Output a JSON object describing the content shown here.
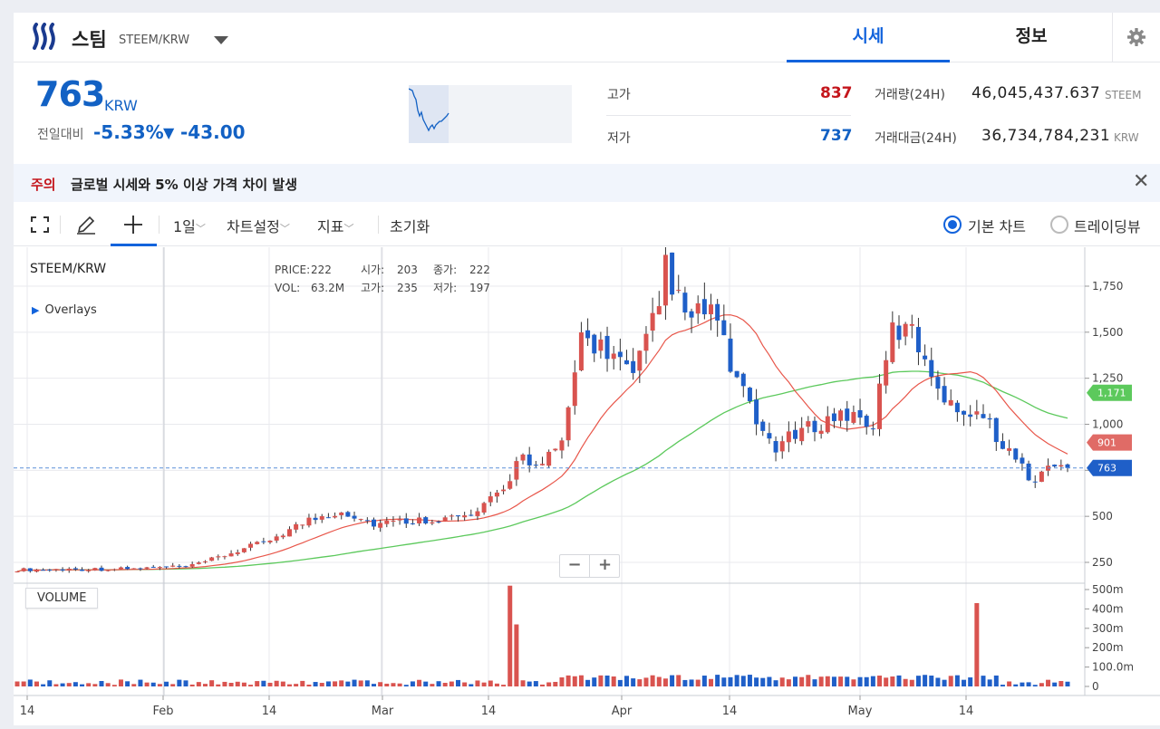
{
  "header": {
    "coin_name": "스팀",
    "pair": "STEEM/KRW",
    "tab_quote": "시세",
    "tab_info": "정보"
  },
  "summary": {
    "price": "763",
    "unit": "KRW",
    "change_label": "전일대비",
    "change_rate": "-5.33%",
    "change_arrow": "▼",
    "change_amount": "-43.00",
    "high_label": "고가",
    "high_value": "837",
    "low_label": "저가",
    "low_value": "737",
    "volume_label": "거래량(24H)",
    "volume_value": "46,045,437.637",
    "volume_unit": "STEEM",
    "amount_label": "거래대금(24H)",
    "amount_value": "36,734,784,231",
    "amount_unit": "KRW"
  },
  "notice": {
    "tag": "주의",
    "text": "글로벌 시세와 5% 이상 가격 차이 발생"
  },
  "toolbar": {
    "period": "1일",
    "chart_settings": "차트설정",
    "indicators": "지표",
    "reset": "초기화",
    "basic_chart": "기본 차트",
    "trading_view": "트레이딩뷰",
    "selected_view": "기본 차트"
  },
  "chart": {
    "title": "STEEM/KRW",
    "overlays": "Overlays",
    "info": {
      "price_label": "PRICE:",
      "price_value": "222",
      "vol_label": "VOL:",
      "vol_value": "63.2M",
      "open_label": "시가:",
      "open_value": "203",
      "high_label": "고가:",
      "high_value": "235",
      "close_label": "종가:",
      "close_value": "222",
      "low_label": "저가:",
      "low_value": "197"
    },
    "volume_label": "VOLUME",
    "zoom_out": "−",
    "zoom_in": "+"
  },
  "colors": {
    "up": "#d9534f",
    "down": "#1f5fc8",
    "ma_short": "#e8564a",
    "ma_long": "#5cc95c",
    "accent": "#1263dc"
  },
  "chart_data": {
    "type": "candlestick",
    "pair": "STEEM/KRW",
    "price_axis_ticks": [
      250,
      500,
      750,
      1000,
      1250,
      1500,
      1750
    ],
    "price_axis_tick_labels": [
      "250",
      "500",
      "750",
      "1,000",
      "1,250",
      "1,500",
      "1,750"
    ],
    "volume_axis_ticks": [
      "0",
      "100.0m",
      "200m",
      "300m",
      "400m",
      "500m"
    ],
    "x_tick_labels": [
      "14",
      "Feb",
      "14",
      "Mar",
      "14",
      "Apr",
      "14",
      "May",
      "14"
    ],
    "ohlc_knots": [
      {
        "i": 0,
        "c": 210
      },
      {
        "i": 18,
        "c": 215
      },
      {
        "i": 27,
        "c": 230
      },
      {
        "i": 38,
        "c": 360
      },
      {
        "i": 45,
        "c": 480
      },
      {
        "i": 50,
        "c": 530
      },
      {
        "i": 55,
        "c": 460
      },
      {
        "i": 62,
        "c": 480
      },
      {
        "i": 70,
        "c": 500
      },
      {
        "i": 75,
        "c": 640
      },
      {
        "i": 78,
        "c": 860
      },
      {
        "i": 80,
        "c": 760
      },
      {
        "i": 84,
        "c": 880
      },
      {
        "i": 87,
        "c": 1480
      },
      {
        "i": 92,
        "c": 1380
      },
      {
        "i": 95,
        "c": 1250
      },
      {
        "i": 99,
        "c": 1640
      },
      {
        "i": 100,
        "c": 1880
      },
      {
        "i": 103,
        "c": 1560
      },
      {
        "i": 107,
        "c": 1640
      },
      {
        "i": 110,
        "c": 1320
      },
      {
        "i": 114,
        "c": 1000
      },
      {
        "i": 117,
        "c": 880
      },
      {
        "i": 120,
        "c": 940
      },
      {
        "i": 124,
        "c": 1010
      },
      {
        "i": 128,
        "c": 1060
      },
      {
        "i": 132,
        "c": 1000
      },
      {
        "i": 135,
        "c": 1510
      },
      {
        "i": 138,
        "c": 1500
      },
      {
        "i": 141,
        "c": 1290
      },
      {
        "i": 144,
        "c": 1090
      },
      {
        "i": 148,
        "c": 1080
      },
      {
        "i": 152,
        "c": 900
      },
      {
        "i": 155,
        "c": 760
      },
      {
        "i": 157,
        "c": 690
      },
      {
        "i": 160,
        "c": 800
      },
      {
        "i": 162,
        "c": 763
      }
    ],
    "last_price": 763,
    "ma_short_last": 901,
    "ma_long_last": 1171,
    "volume_peaks_millions": [
      {
        "i": 76,
        "v": 520
      },
      {
        "i": 77,
        "v": 320
      },
      {
        "i": 148,
        "v": 430
      }
    ]
  }
}
